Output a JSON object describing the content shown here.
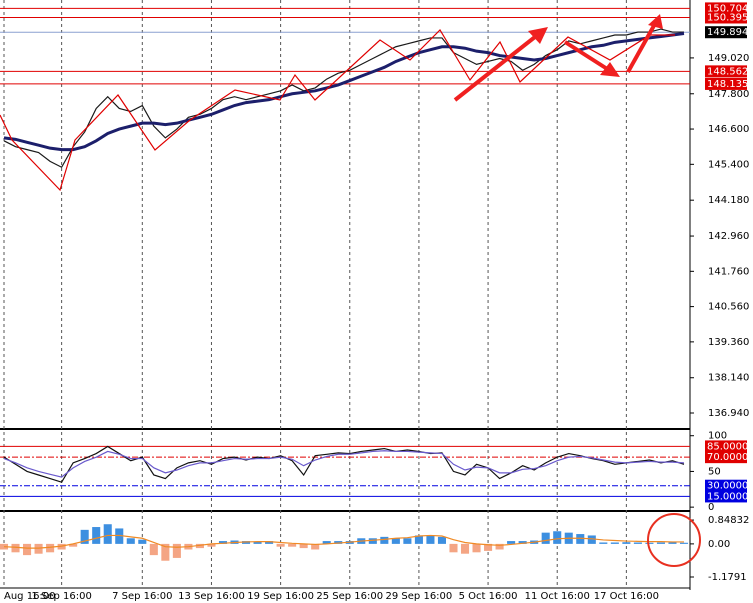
{
  "chart_data": [
    {
      "type": "line",
      "ylim": [
        136.43,
        150.82
      ],
      "yticks": [
        {
          "value": 149.02,
          "label": "149.020"
        },
        {
          "value": 147.8,
          "label": "147.800"
        },
        {
          "value": 146.6,
          "label": "146.600"
        },
        {
          "value": 145.4,
          "label": "145.400"
        },
        {
          "value": 144.18,
          "label": "144.180"
        },
        {
          "value": 142.96,
          "label": "142.960"
        },
        {
          "value": 141.76,
          "label": "141.760"
        },
        {
          "value": 140.56,
          "label": "140.560"
        },
        {
          "value": 139.36,
          "label": "139.360"
        },
        {
          "value": 138.14,
          "label": "138.140"
        },
        {
          "value": 136.94,
          "label": "136.940"
        }
      ],
      "levels": [
        {
          "value": 150.704,
          "color": "#e00000"
        },
        {
          "value": 150.395,
          "color": "#e00000"
        },
        {
          "value": 149.894,
          "color": "#000000"
        },
        {
          "value": 148.562,
          "color": "#e00000"
        },
        {
          "value": 148.135,
          "color": "#e00000"
        }
      ],
      "series": [
        {
          "color": "#1a1a1a",
          "values": [
            146.2,
            146.0,
            145.9,
            145.8,
            145.5,
            145.3,
            146.0,
            146.5,
            147.3,
            147.7,
            147.3,
            147.2,
            147.4,
            146.7,
            146.3,
            146.6,
            147.0,
            147.1,
            147.3,
            147.6,
            147.7,
            147.6,
            147.7,
            147.8,
            147.9,
            148.1,
            147.9,
            148.0,
            148.3,
            148.5,
            148.6,
            148.8,
            149.0,
            149.2,
            149.4,
            149.5,
            149.6,
            149.7,
            149.7,
            149.2,
            149.0,
            148.8,
            148.9,
            149.0,
            148.9,
            148.6,
            148.8,
            149.1,
            149.3,
            149.6,
            149.5,
            149.6,
            149.7,
            149.8,
            149.8,
            149.9,
            149.9,
            150.0,
            149.9,
            149.9
          ]
        },
        {
          "color": "#1c1f6b",
          "values": [
            146.3,
            146.25,
            146.15,
            146.05,
            145.95,
            145.9,
            145.9,
            146.0,
            146.2,
            146.45,
            146.6,
            146.7,
            146.8,
            146.8,
            146.75,
            146.8,
            146.9,
            147.0,
            147.1,
            147.25,
            147.4,
            147.5,
            147.55,
            147.6,
            147.7,
            147.8,
            147.85,
            147.9,
            148.0,
            148.1,
            148.25,
            148.4,
            148.55,
            148.7,
            148.9,
            149.05,
            149.2,
            149.3,
            149.4,
            149.4,
            149.35,
            149.25,
            149.2,
            149.1,
            149.05,
            149.0,
            148.95,
            149.0,
            149.1,
            149.2,
            149.3,
            149.4,
            149.45,
            149.55,
            149.6,
            149.65,
            149.7,
            149.75,
            149.8,
            149.85
          ]
        }
      ]
    },
    {
      "type": "line",
      "ylim": [
        -4,
        108
      ],
      "yticks": [
        100,
        50,
        0
      ],
      "levels": [
        {
          "value": 85,
          "label": "85.0000",
          "color": "#e00000"
        },
        {
          "value": 70,
          "label": "70.0000",
          "color": "#e00000"
        },
        {
          "value": 30,
          "label": "30.0000",
          "color": "#0000e0"
        },
        {
          "value": 15,
          "label": "15.0000",
          "color": "#0000e0"
        }
      ],
      "series": [
        {
          "color": "#111111",
          "values": [
            70,
            60,
            50,
            45,
            40,
            35,
            62,
            68,
            75,
            85,
            75,
            65,
            70,
            45,
            40,
            55,
            62,
            65,
            60,
            68,
            70,
            66,
            70,
            68,
            72,
            65,
            45,
            72,
            74,
            76,
            75,
            78,
            80,
            82,
            78,
            80,
            78,
            75,
            76,
            50,
            45,
            60,
            55,
            40,
            48,
            58,
            52,
            62,
            70,
            75,
            72,
            68,
            65,
            60,
            62,
            64,
            66,
            62,
            65,
            60
          ]
        },
        {
          "color": "#6a5acd",
          "values": [
            68,
            62,
            55,
            50,
            46,
            42,
            55,
            64,
            70,
            78,
            74,
            68,
            68,
            55,
            48,
            52,
            58,
            62,
            62,
            65,
            68,
            67,
            68,
            68,
            70,
            67,
            58,
            66,
            71,
            74,
            74,
            76,
            78,
            79,
            78,
            78,
            77,
            76,
            75,
            60,
            52,
            56,
            55,
            48,
            48,
            53,
            54,
            58,
            65,
            70,
            71,
            69,
            66,
            63,
            62,
            63,
            64,
            63,
            63,
            62
          ]
        }
      ]
    },
    {
      "type": "bar",
      "ylim": [
        -1.5,
        1.1
      ],
      "yticks": [
        0.84832,
        {
          "value": 0,
          "label": "0.00"
        },
        -1.1791
      ],
      "categories": [
        "Aug 16:00",
        null,
        null,
        null,
        null,
        "1 Sep 16:00",
        null,
        null,
        null,
        null,
        null,
        null,
        "7 Sep 16:00",
        null,
        null,
        null,
        null,
        null,
        "13 Sep 16:00",
        null,
        null,
        null,
        null,
        null,
        "19 Sep 16:00",
        null,
        null,
        null,
        null,
        null,
        "25 Sep 16:00",
        null,
        null,
        null,
        null,
        null,
        "29 Sep 16:00",
        null,
        null,
        null,
        null,
        null,
        "5 Oct 16:00",
        null,
        null,
        null,
        null,
        null,
        "11 Oct 16:00",
        null,
        null,
        null,
        null,
        null,
        "17 Oct 16:00",
        null,
        null,
        null,
        null,
        null
      ],
      "grid": true,
      "positive_color": "#3d8fe0",
      "negative_color": "#f4a584",
      "values": [
        -0.2,
        -0.3,
        -0.4,
        -0.35,
        -0.3,
        -0.2,
        -0.1,
        0.5,
        0.6,
        0.7,
        0.55,
        0.2,
        0.15,
        -0.4,
        -0.6,
        -0.5,
        -0.2,
        -0.15,
        -0.1,
        0.1,
        0.12,
        0.1,
        0.08,
        0.1,
        -0.1,
        -0.1,
        -0.15,
        -0.2,
        0.1,
        0.1,
        0.1,
        0.2,
        0.2,
        0.25,
        0.2,
        0.2,
        0.3,
        0.3,
        0.25,
        -0.3,
        -0.35,
        -0.3,
        -0.25,
        -0.2,
        0.1,
        0.1,
        0.12,
        0.4,
        0.45,
        0.4,
        0.35,
        0.3,
        0.05,
        0.05,
        0.06,
        0.05,
        0.04,
        0.05,
        0.05,
        0.04
      ],
      "series": [
        {
          "color": "#f08a24",
          "values": [
            -0.1,
            -0.12,
            -0.15,
            -0.15,
            -0.12,
            -0.08,
            0.0,
            0.1,
            0.2,
            0.3,
            0.3,
            0.25,
            0.2,
            0.05,
            -0.1,
            -0.12,
            -0.1,
            -0.05,
            0.0,
            0.02,
            0.05,
            0.07,
            0.08,
            0.08,
            0.05,
            0.02,
            0.0,
            -0.02,
            0.0,
            0.03,
            0.06,
            0.1,
            0.13,
            0.16,
            0.2,
            0.22,
            0.28,
            0.3,
            0.28,
            0.15,
            0.05,
            0.0,
            -0.03,
            -0.05,
            -0.02,
            0.02,
            0.06,
            0.12,
            0.18,
            0.2,
            0.2,
            0.18,
            0.14,
            0.12,
            0.1,
            0.09,
            0.08,
            0.08,
            0.07,
            0.07
          ]
        }
      ]
    }
  ]
}
